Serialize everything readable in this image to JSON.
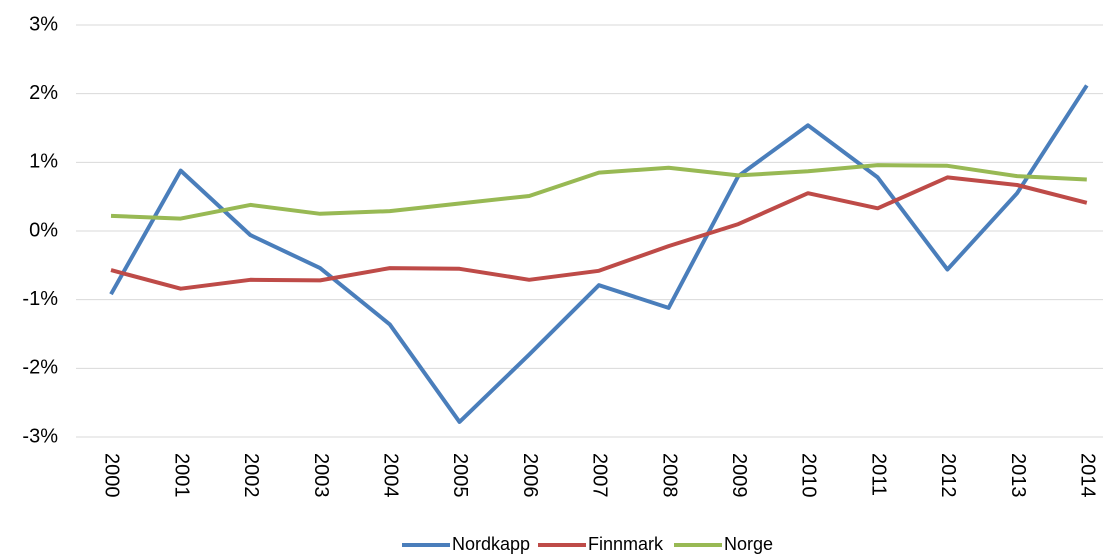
{
  "chart_data": {
    "type": "line",
    "categories": [
      "2000",
      "2001",
      "2002",
      "2003",
      "2004",
      "2005",
      "2006",
      "2007",
      "2008",
      "2009",
      "2010",
      "2011",
      "2012",
      "2013",
      "2014"
    ],
    "series": [
      {
        "name": "Nordkapp",
        "color": "#4a7ebb",
        "values": [
          -0.92,
          0.88,
          -0.06,
          -0.54,
          -1.36,
          -2.78,
          -1.8,
          -0.79,
          -1.12,
          0.8,
          1.54,
          0.78,
          -0.56,
          0.55,
          2.12
        ]
      },
      {
        "name": "Finnmark",
        "color": "#be4b48",
        "values": [
          -0.57,
          -0.84,
          -0.71,
          -0.72,
          -0.54,
          -0.55,
          -0.71,
          -0.58,
          -0.22,
          0.1,
          0.55,
          0.33,
          0.78,
          0.67,
          0.41
        ]
      },
      {
        "name": "Norge",
        "color": "#98b954",
        "values": [
          0.22,
          0.18,
          0.38,
          0.25,
          0.29,
          0.4,
          0.51,
          0.85,
          0.92,
          0.81,
          0.87,
          0.96,
          0.95,
          0.8,
          0.75
        ]
      }
    ],
    "ylim": [
      -3,
      3
    ],
    "yticks": [
      {
        "value": -3,
        "label": "-3%"
      },
      {
        "value": -2,
        "label": "-2%"
      },
      {
        "value": -1,
        "label": "-1%"
      },
      {
        "value": 0,
        "label": "0%"
      },
      {
        "value": 1,
        "label": "1%"
      },
      {
        "value": 2,
        "label": "2%"
      },
      {
        "value": 3,
        "label": "3%"
      }
    ],
    "grid": true,
    "legend": "bottom"
  }
}
